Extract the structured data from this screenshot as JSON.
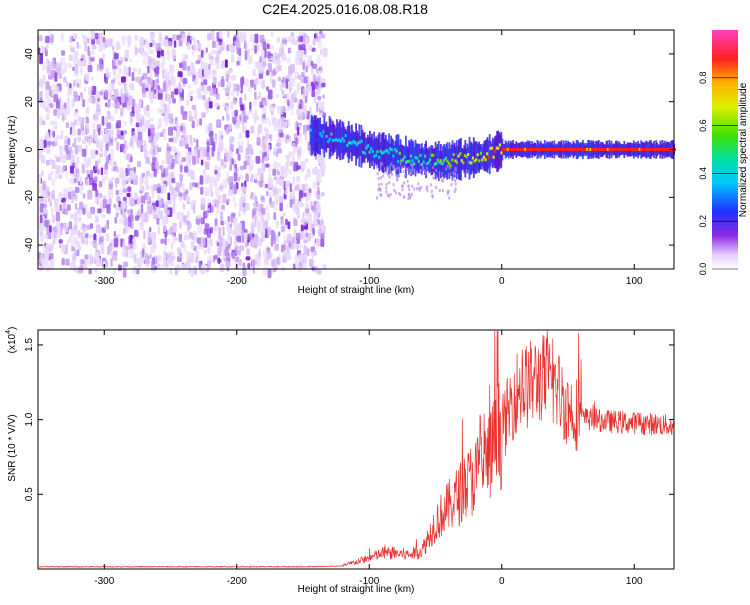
{
  "title": "C2E4.2025.016.08.08.R18",
  "colors": {
    "snr_line": "#e8322f",
    "spectrogram_low": "#e3d0f7",
    "spectrogram_mid": "#7a1de0"
  },
  "chart_data": [
    {
      "type": "heatmap",
      "title": "C2E4.2025.016.08.08.R18",
      "xlabel": "Height of straight line (km)",
      "ylabel": "Frequency (Hz)",
      "xlim": [
        -350,
        130
      ],
      "ylim": [
        -50,
        50
      ],
      "xticks": [
        -300,
        -200,
        -100,
        0,
        100
      ],
      "yticks": [
        -40,
        -20,
        0,
        20,
        40
      ],
      "colorbar": {
        "label": "Normalized spectral amplitude",
        "range": [
          0,
          1
        ],
        "ticks": [
          "0.0",
          "0.2",
          "0.4",
          "0.6",
          "0.8"
        ],
        "colormap": "rainbow"
      },
      "noise_region_x": [
        -350,
        -135
      ],
      "signal_track": {
        "x": [
          -145,
          -130,
          -115,
          -100,
          -85,
          -75,
          -60,
          -45,
          -30,
          -15,
          0,
          20,
          40,
          60,
          80,
          100,
          130
        ],
        "frequency": [
          6,
          5,
          3,
          0,
          -2,
          -3,
          -4,
          -5,
          -4,
          -3,
          0,
          0,
          0,
          0,
          0,
          0,
          0
        ],
        "amplitude": [
          0.3,
          0.45,
          0.5,
          0.45,
          0.5,
          0.55,
          0.5,
          0.6,
          0.75,
          0.8,
          0.9,
          0.95,
          0.95,
          0.95,
          0.95,
          0.95,
          0.95
        ]
      }
    },
    {
      "type": "line",
      "xlabel": "Height of straight line (km)",
      "ylabel": "SNR (10 * V/V)",
      "y_multiplier_label": "(x10",
      "y_multiplier_exp": "4",
      "y_multiplier_close": ")",
      "xlim": [
        -350,
        130
      ],
      "ylim": [
        0,
        16000
      ],
      "xticks": [
        -300,
        -200,
        -100,
        0,
        100
      ],
      "yticks": [
        {
          "value": 5000,
          "label": "0.5"
        },
        {
          "value": 10000,
          "label": "1.0"
        },
        {
          "value": 15000,
          "label": "1.5"
        }
      ],
      "series": [
        {
          "color": "#e8322f",
          "x": [
            -350,
            -300,
            -250,
            -200,
            -150,
            -120,
            -100,
            -90,
            -80,
            -70,
            -60,
            -50,
            -40,
            -30,
            -20,
            -10,
            0,
            10,
            20,
            30,
            40,
            50,
            60,
            80,
            100,
            120,
            130
          ],
          "y": [
            150,
            150,
            150,
            150,
            150,
            200,
            700,
            1000,
            1000,
            900,
            1200,
            3000,
            4000,
            5000,
            6000,
            7000,
            9000,
            11500,
            12000,
            12500,
            12000,
            10500,
            10000,
            9800,
            9700,
            9600,
            9500
          ]
        }
      ]
    }
  ]
}
